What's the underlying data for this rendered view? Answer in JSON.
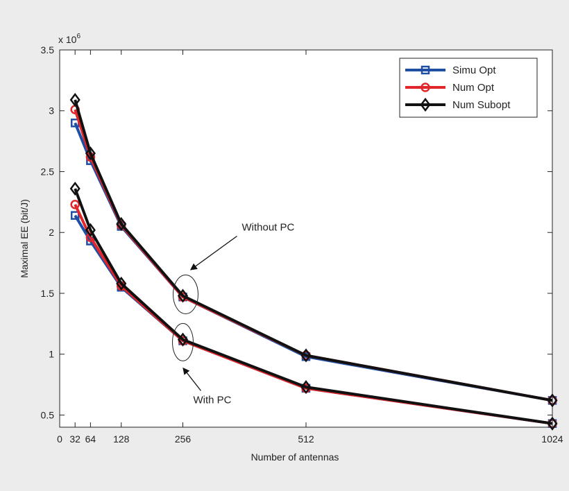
{
  "chart_data": {
    "type": "line",
    "xlabel": "Number of antennas",
    "ylabel": "Maximal EE (bit/J)",
    "y_multiplier_label": "x 10",
    "y_multiplier_exp": "6",
    "xlim": [
      0,
      1024
    ],
    "ylim": [
      0.4,
      3.5
    ],
    "x_ticks": [
      0,
      32,
      64,
      128,
      256,
      512,
      1024
    ],
    "y_ticks": [
      0.5,
      1,
      1.5,
      2,
      2.5,
      3,
      3.5
    ],
    "y_tick_labels": [
      "0.5",
      "1",
      "1.5",
      "2",
      "2.5",
      "3",
      "3.5"
    ],
    "grid": false,
    "legend_position": "top-right",
    "series": [
      {
        "name": "Simu Opt",
        "color": "#1f4fa3",
        "marker": "square",
        "group": "Without PC",
        "x": [
          32,
          64,
          128,
          256,
          512,
          1024
        ],
        "y": [
          2.9,
          2.59,
          2.05,
          1.47,
          0.98,
          0.62
        ]
      },
      {
        "name": "Num Opt",
        "color": "#e0262a",
        "marker": "circle",
        "group": "Without PC",
        "x": [
          32,
          64,
          128,
          256,
          512,
          1024
        ],
        "y": [
          3.01,
          2.62,
          2.06,
          1.47,
          0.99,
          0.62
        ]
      },
      {
        "name": "Num Subopt",
        "color": "#111111",
        "marker": "diamond",
        "group": "Without PC",
        "x": [
          32,
          64,
          128,
          256,
          512,
          1024
        ],
        "y": [
          3.09,
          2.65,
          2.07,
          1.48,
          0.99,
          0.62
        ]
      },
      {
        "name": "Simu Opt",
        "color": "#1f4fa3",
        "marker": "square",
        "group": "With PC",
        "legend": false,
        "x": [
          32,
          64,
          128,
          256,
          512,
          1024
        ],
        "y": [
          2.14,
          1.93,
          1.55,
          1.11,
          0.72,
          0.43
        ]
      },
      {
        "name": "Num Opt",
        "color": "#e0262a",
        "marker": "circle",
        "group": "With PC",
        "legend": false,
        "x": [
          32,
          64,
          128,
          256,
          512,
          1024
        ],
        "y": [
          2.23,
          1.96,
          1.56,
          1.11,
          0.72,
          0.43
        ]
      },
      {
        "name": "Num Subopt",
        "color": "#111111",
        "marker": "diamond",
        "group": "With PC",
        "legend": false,
        "x": [
          32,
          64,
          128,
          256,
          512,
          1024
        ],
        "y": [
          2.36,
          2.02,
          1.58,
          1.12,
          0.73,
          0.43
        ]
      }
    ],
    "annotations": [
      {
        "text": "Without PC",
        "x": 256,
        "y": 1.48
      },
      {
        "text": "With PC",
        "x": 256,
        "y": 1.11
      }
    ]
  }
}
